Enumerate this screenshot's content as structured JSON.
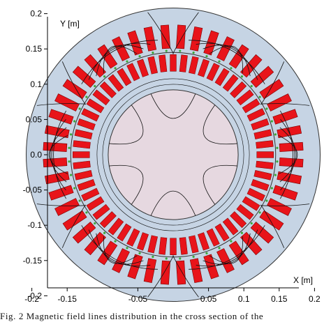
{
  "figure": {
    "x_axis_label": "X [m]",
    "y_axis_label": "Y [m]",
    "x_ticks": [
      "-0.2",
      "-0.15",
      "-0.05",
      "0.05",
      "0.1",
      "0.15",
      "0.2"
    ],
    "x_tick_values": [
      -0.2,
      -0.15,
      -0.05,
      0.05,
      0.1,
      0.15,
      0.2
    ],
    "y_ticks": [
      "0.2",
      "0.15",
      "0.1",
      "0.05",
      "0.0",
      "-0.05",
      "-0.1",
      "-0.15",
      "-0.2"
    ],
    "y_tick_values": [
      0.2,
      0.15,
      0.1,
      0.05,
      0.0,
      -0.05,
      -0.1,
      -0.15,
      -0.2
    ],
    "caption": "Fig. 2 Magnetic field lines distribution in the cross section of the"
  },
  "model": {
    "stator_slots": 48,
    "stator_outer_radius_m": 0.208,
    "stator_inner_radius_m": 0.148,
    "rotor_outer_radius_m": 0.145,
    "rotor_slots": 56,
    "rotor_core_radius_m": 0.092,
    "poles": 6,
    "colors": {
      "stator_core": "#c6d4e4",
      "rotor_core": "#e6d8e0",
      "winding": "#e8141a",
      "rotor_bar": "#e8141a",
      "air_gap_magnets": "#3aa83a",
      "field_lines": "#111111"
    }
  }
}
